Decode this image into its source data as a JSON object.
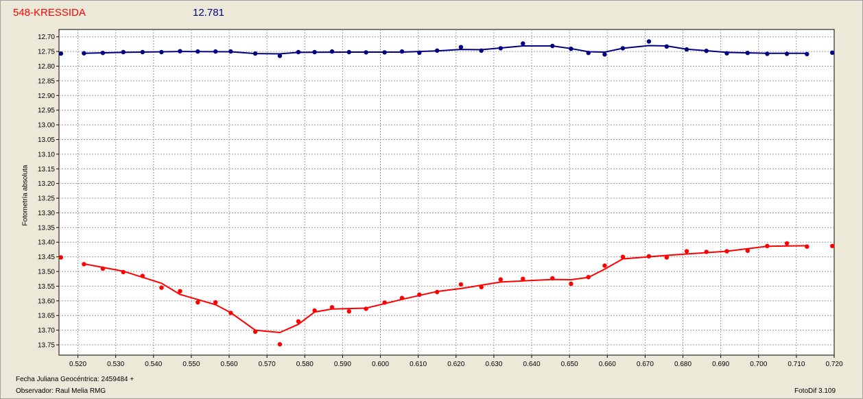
{
  "header": {
    "title": "548-KRESSIDA",
    "magnitude": "12.781"
  },
  "footer": {
    "date_label": "Fecha Juliana Geocéntrica: 2459484 +",
    "observer": "Observador: Raul Melia RMG",
    "version": "FotoDif 3.109"
  },
  "chart_data": {
    "type": "scatter",
    "title": "",
    "xlabel": "",
    "ylabel": "Fotometría absoluta",
    "xlim": [
      0.515,
      0.72
    ],
    "ylim": [
      13.785,
      12.675
    ],
    "y_inverted": true,
    "grid": true,
    "x_ticks": [
      "0.520",
      "0.530",
      "0.540",
      "0.550",
      "0.560",
      "0.570",
      "0.580",
      "0.590",
      "0.600",
      "0.610",
      "0.620",
      "0.630",
      "0.640",
      "0.650",
      "0.660",
      "0.670",
      "0.680",
      "0.690",
      "0.700",
      "0.710",
      "0.720"
    ],
    "y_ticks": [
      "12.70",
      "12.75",
      "12.80",
      "12.85",
      "12.90",
      "12.95",
      "13.00",
      "13.05",
      "13.10",
      "13.15",
      "13.20",
      "13.25",
      "13.30",
      "13.35",
      "13.40",
      "13.45",
      "13.50",
      "13.55",
      "13.60",
      "13.65",
      "13.70",
      "13.75"
    ],
    "series": [
      {
        "color": "#000080",
        "points": [
          [
            0.5155,
            12.757
          ],
          [
            0.5216,
            12.756
          ],
          [
            0.5266,
            12.755
          ],
          [
            0.532,
            12.752
          ],
          [
            0.5371,
            12.752
          ],
          [
            0.5421,
            12.752
          ],
          [
            0.547,
            12.749
          ],
          [
            0.5517,
            12.75
          ],
          [
            0.5564,
            12.75
          ],
          [
            0.5604,
            12.75
          ],
          [
            0.5669,
            12.757
          ],
          [
            0.5734,
            12.765
          ],
          [
            0.5783,
            12.752
          ],
          [
            0.5826,
            12.752
          ],
          [
            0.5872,
            12.75
          ],
          [
            0.5917,
            12.752
          ],
          [
            0.5962,
            12.753
          ],
          [
            0.6011,
            12.753
          ],
          [
            0.6057,
            12.75
          ],
          [
            0.6103,
            12.754
          ],
          [
            0.615,
            12.747
          ],
          [
            0.6213,
            12.735
          ],
          [
            0.6267,
            12.747
          ],
          [
            0.6318,
            12.739
          ],
          [
            0.6377,
            12.723
          ],
          [
            0.6455,
            12.731
          ],
          [
            0.6504,
            12.741
          ],
          [
            0.655,
            12.755
          ],
          [
            0.6593,
            12.76
          ],
          [
            0.6641,
            12.739
          ],
          [
            0.671,
            12.716
          ],
          [
            0.6757,
            12.733
          ],
          [
            0.681,
            12.743
          ],
          [
            0.6862,
            12.748
          ],
          [
            0.6916,
            12.756
          ],
          [
            0.6971,
            12.755
          ],
          [
            0.7023,
            12.758
          ],
          [
            0.7075,
            12.758
          ],
          [
            0.7128,
            12.759
          ],
          [
            0.7195,
            12.754
          ]
        ],
        "fit": [
          [
            0.5216,
            12.756
          ],
          [
            0.532,
            12.753
          ],
          [
            0.547,
            12.75
          ],
          [
            0.5604,
            12.751
          ],
          [
            0.5669,
            12.757
          ],
          [
            0.5734,
            12.758
          ],
          [
            0.5783,
            12.753
          ],
          [
            0.5917,
            12.752
          ],
          [
            0.6057,
            12.752
          ],
          [
            0.615,
            12.748
          ],
          [
            0.6213,
            12.743
          ],
          [
            0.6267,
            12.744
          ],
          [
            0.6318,
            12.738
          ],
          [
            0.6377,
            12.731
          ],
          [
            0.6455,
            12.731
          ],
          [
            0.6504,
            12.74
          ],
          [
            0.655,
            12.751
          ],
          [
            0.6593,
            12.752
          ],
          [
            0.6641,
            12.739
          ],
          [
            0.671,
            12.73
          ],
          [
            0.6757,
            12.731
          ],
          [
            0.681,
            12.742
          ],
          [
            0.6916,
            12.753
          ],
          [
            0.7023,
            12.756
          ],
          [
            0.7128,
            12.756
          ]
        ]
      },
      {
        "color": "#ff0000",
        "points": [
          [
            0.5155,
            13.452
          ],
          [
            0.5216,
            13.475
          ],
          [
            0.5266,
            13.49
          ],
          [
            0.532,
            13.502
          ],
          [
            0.5371,
            13.515
          ],
          [
            0.5421,
            13.555
          ],
          [
            0.547,
            13.567
          ],
          [
            0.5517,
            13.605
          ],
          [
            0.5564,
            13.605
          ],
          [
            0.5604,
            13.641
          ],
          [
            0.5669,
            13.705
          ],
          [
            0.5734,
            13.748
          ],
          [
            0.5783,
            13.67
          ],
          [
            0.5826,
            13.633
          ],
          [
            0.5872,
            13.622
          ],
          [
            0.5917,
            13.636
          ],
          [
            0.5962,
            13.627
          ],
          [
            0.6011,
            13.606
          ],
          [
            0.6057,
            13.59
          ],
          [
            0.6103,
            13.579
          ],
          [
            0.615,
            13.57
          ],
          [
            0.6213,
            13.544
          ],
          [
            0.6267,
            13.553
          ],
          [
            0.6318,
            13.527
          ],
          [
            0.6377,
            13.525
          ],
          [
            0.6455,
            13.523
          ],
          [
            0.6504,
            13.542
          ],
          [
            0.655,
            13.519
          ],
          [
            0.6593,
            13.48
          ],
          [
            0.6641,
            13.45
          ],
          [
            0.671,
            13.448
          ],
          [
            0.6757,
            13.452
          ],
          [
            0.681,
            13.431
          ],
          [
            0.6862,
            13.433
          ],
          [
            0.6916,
            13.431
          ],
          [
            0.6971,
            13.429
          ],
          [
            0.7023,
            13.413
          ],
          [
            0.7075,
            13.404
          ],
          [
            0.7128,
            13.415
          ],
          [
            0.7195,
            13.413
          ]
        ],
        "fit": [
          [
            0.5216,
            13.474
          ],
          [
            0.532,
            13.499
          ],
          [
            0.5421,
            13.54
          ],
          [
            0.547,
            13.578
          ],
          [
            0.5564,
            13.613
          ],
          [
            0.5604,
            13.64
          ],
          [
            0.5669,
            13.7
          ],
          [
            0.5734,
            13.708
          ],
          [
            0.5783,
            13.68
          ],
          [
            0.5826,
            13.638
          ],
          [
            0.5872,
            13.628
          ],
          [
            0.5962,
            13.625
          ],
          [
            0.6057,
            13.595
          ],
          [
            0.615,
            13.568
          ],
          [
            0.6213,
            13.558
          ],
          [
            0.6318,
            13.536
          ],
          [
            0.6455,
            13.527
          ],
          [
            0.6504,
            13.528
          ],
          [
            0.655,
            13.52
          ],
          [
            0.6593,
            13.492
          ],
          [
            0.6641,
            13.457
          ],
          [
            0.6757,
            13.445
          ],
          [
            0.6916,
            13.431
          ],
          [
            0.7023,
            13.414
          ],
          [
            0.7128,
            13.412
          ]
        ]
      }
    ]
  }
}
